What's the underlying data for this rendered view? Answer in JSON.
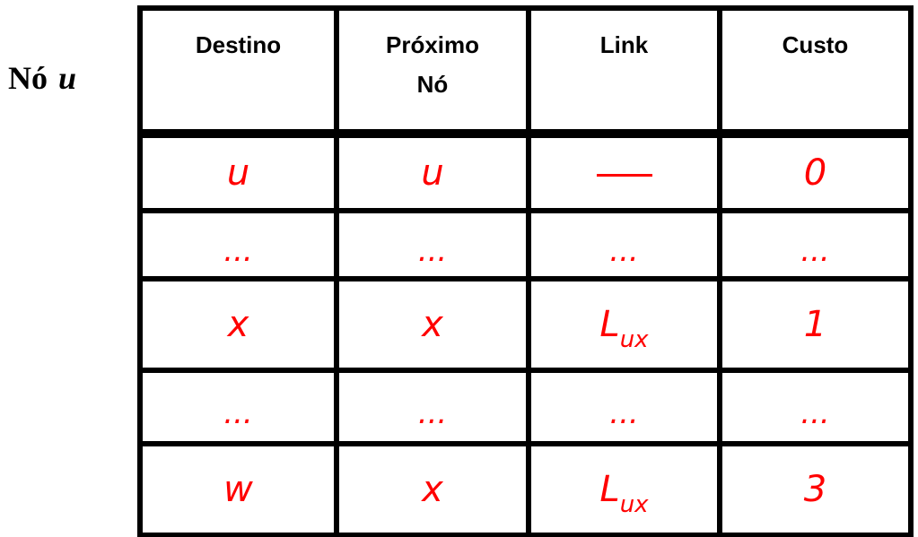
{
  "node": {
    "prefix": "Nó",
    "name": "u"
  },
  "table": {
    "headers": [
      {
        "lines": [
          "Destino"
        ]
      },
      {
        "lines": [
          "Próximo",
          "Nó"
        ]
      },
      {
        "lines": [
          "Link"
        ]
      },
      {
        "lines": [
          "Custo"
        ]
      }
    ],
    "rows": [
      {
        "destino": "u",
        "proximo": "u",
        "link_dash": true,
        "custo": "0"
      },
      {
        "destino": "...",
        "proximo": "...",
        "link_text": "...",
        "custo": "..."
      },
      {
        "destino": "x",
        "proximo": "x",
        "link_main": "L",
        "link_sub": "ux",
        "custo": "1"
      },
      {
        "destino": "...",
        "proximo": "...",
        "link_text": "...",
        "custo": "..."
      },
      {
        "destino": "w",
        "proximo": "x",
        "link_main": "L",
        "link_sub": "ux",
        "custo": "3"
      }
    ]
  },
  "colors": {
    "entries": "#ff0000",
    "headers": "#000000",
    "grid": "#000000"
  }
}
